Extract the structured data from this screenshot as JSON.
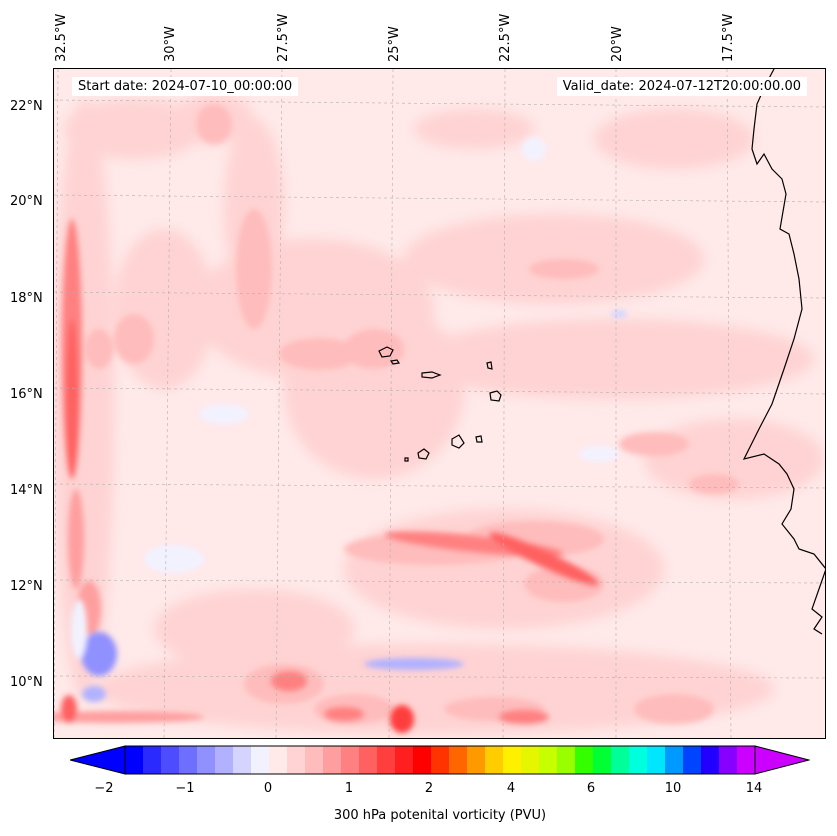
{
  "map": {
    "start_date": "Start date: 2024-07-10_00:00:00",
    "valid_date": "Valid_date: 2024-07-12T20:00:00.00",
    "lon_labels": [
      "32.5°W",
      "30°W",
      "27.5°W",
      "25°W",
      "22.5°W",
      "20°W",
      "17.5°W"
    ],
    "lat_labels": [
      "22°N",
      "20°N",
      "18°N",
      "16°N",
      "14°N",
      "12°N",
      "10°N"
    ],
    "colorbar": {
      "title": "300 hPa potenital vorticity (PVU)",
      "tick_labels": [
        "−2",
        "−1",
        "0",
        "1",
        "2",
        "4",
        "6",
        "10",
        "14"
      ],
      "colors": [
        "#0000ff",
        "#2a2aff",
        "#4d4dff",
        "#6f6fff",
        "#9090ff",
        "#b1b1ff",
        "#d4d4ff",
        "#f2f2ff",
        "#ffe9e9",
        "#ffd3d3",
        "#ffbcbc",
        "#ff9e9e",
        "#ff8080",
        "#ff6161",
        "#ff3e3e",
        "#ff1f1f",
        "#ff0000",
        "#ff3300",
        "#ff6600",
        "#ff9900",
        "#ffcc00",
        "#fff000",
        "#e6f500",
        "#c7ff00",
        "#99ff00",
        "#33ff00",
        "#00ff33",
        "#00ff99",
        "#00ffdd",
        "#00e6ff",
        "#0099ff",
        "#0044ff",
        "#2200ff",
        "#8800ff",
        "#cc00ff"
      ]
    }
  }
}
